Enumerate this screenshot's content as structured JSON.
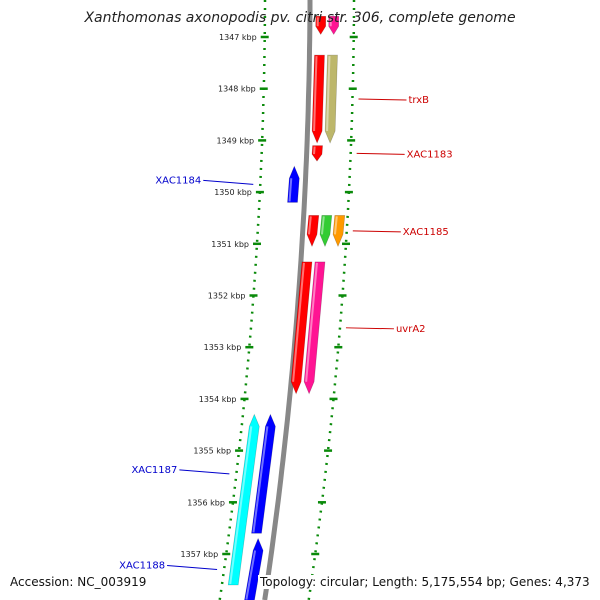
{
  "title": "Xanthomonas axonopodis pv. citri str. 306, complete genome",
  "accession_text": "Accession: NC_003919",
  "topology_text": "Topology: circular;",
  "length_text": "Length: 5,175,554 bp;",
  "genes_text": "Genes: 4,373",
  "ticks": [
    {
      "kbp": 1347,
      "label": "1347 kbp"
    },
    {
      "kbp": 1348,
      "label": "1348 kbp"
    },
    {
      "kbp": 1349,
      "label": "1349 kbp"
    },
    {
      "kbp": 1350,
      "label": "1350 kbp"
    },
    {
      "kbp": 1351,
      "label": "1351 kbp"
    },
    {
      "kbp": 1352,
      "label": "1352 kbp"
    },
    {
      "kbp": 1353,
      "label": "1353 kbp"
    },
    {
      "kbp": 1354,
      "label": "1354 kbp"
    },
    {
      "kbp": 1355,
      "label": "1355 kbp"
    },
    {
      "kbp": 1356,
      "label": "1356 kbp"
    },
    {
      "kbp": 1357,
      "label": "1357 kbp"
    }
  ],
  "genes": [
    {
      "name": "",
      "strand": "+",
      "lane": 0,
      "start_kbp": 1346.6,
      "end_kbp": 1346.95,
      "color": "#ff0000",
      "labeled": false
    },
    {
      "name": "",
      "strand": "+",
      "lane": 1,
      "start_kbp": 1346.6,
      "end_kbp": 1346.95,
      "color": "#ff1493",
      "labeled": false
    },
    {
      "name": "trxB",
      "strand": "+",
      "lane": 0,
      "start_kbp": 1347.35,
      "end_kbp": 1349.05,
      "color": "#ff0000",
      "labeled": true
    },
    {
      "name": "",
      "strand": "+",
      "lane": 1,
      "start_kbp": 1347.35,
      "end_kbp": 1349.05,
      "color": "#bdb76b",
      "labeled": false
    },
    {
      "name": "XAC1183",
      "strand": "+",
      "lane": 0,
      "start_kbp": 1349.1,
      "end_kbp": 1349.4,
      "color": "#ff0000",
      "labeled": true
    },
    {
      "name": "XAC1184",
      "strand": "-",
      "lane": 0,
      "start_kbp": 1349.5,
      "end_kbp": 1350.2,
      "color": "#0000ff",
      "labeled": true
    },
    {
      "name": "XAC1185",
      "strand": "+",
      "lane": 0,
      "start_kbp": 1350.45,
      "end_kbp": 1351.05,
      "color": "#ff0000",
      "labeled": true
    },
    {
      "name": "",
      "strand": "+",
      "lane": 1,
      "start_kbp": 1350.45,
      "end_kbp": 1351.05,
      "color": "#33cc33",
      "labeled": false
    },
    {
      "name": "",
      "strand": "+",
      "lane": 2,
      "start_kbp": 1350.45,
      "end_kbp": 1351.05,
      "color": "#ff9900",
      "labeled": false
    },
    {
      "name": "uvrA2",
      "strand": "+",
      "lane": 0,
      "start_kbp": 1351.35,
      "end_kbp": 1353.9,
      "color": "#ff0000",
      "labeled": true
    },
    {
      "name": "",
      "strand": "+",
      "lane": 1,
      "start_kbp": 1351.35,
      "end_kbp": 1353.9,
      "color": "#ff1493",
      "labeled": false
    },
    {
      "name": "XAC1187",
      "strand": "-",
      "lane": 0,
      "start_kbp": 1354.3,
      "end_kbp": 1356.6,
      "color": "#0000ff",
      "labeled": true
    },
    {
      "name": "",
      "strand": "-",
      "lane": 1,
      "start_kbp": 1354.3,
      "end_kbp": 1357.6,
      "color": "#00ffff",
      "labeled": false
    },
    {
      "name": "XAC1188",
      "strand": "-",
      "lane": 0,
      "start_kbp": 1356.7,
      "end_kbp": 1357.9,
      "color": "#0000ff",
      "labeled": true
    }
  ],
  "colors": {
    "backbone": "#888888",
    "tick_dots": "#0a8a0a",
    "forward_label": "#cc0000",
    "reverse_label": "#0000cc"
  }
}
